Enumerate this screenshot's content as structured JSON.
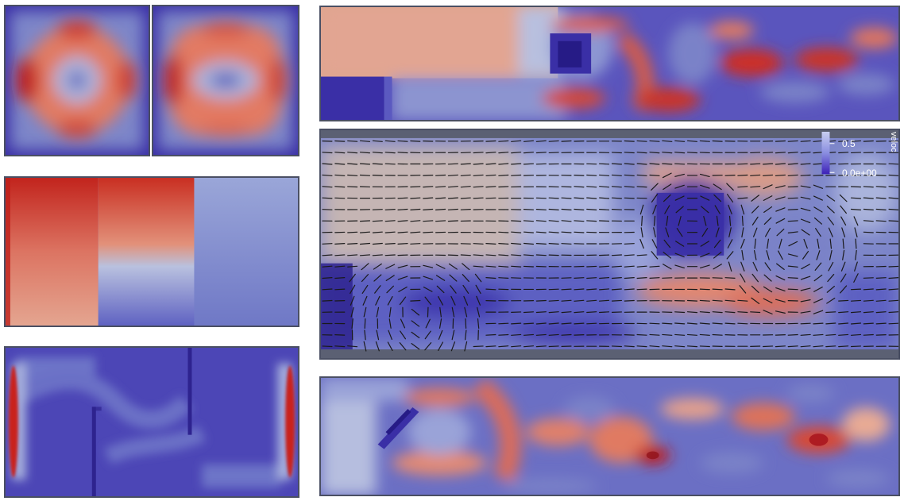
{
  "colorbar": {
    "title": "veloc",
    "max_label": "0.5",
    "min_label": "0.0e+00"
  },
  "colors": {
    "low": "#3b2fa8",
    "mid": "#b9c3e3",
    "high": "#c4151c",
    "frame": "#4a4f63"
  }
}
